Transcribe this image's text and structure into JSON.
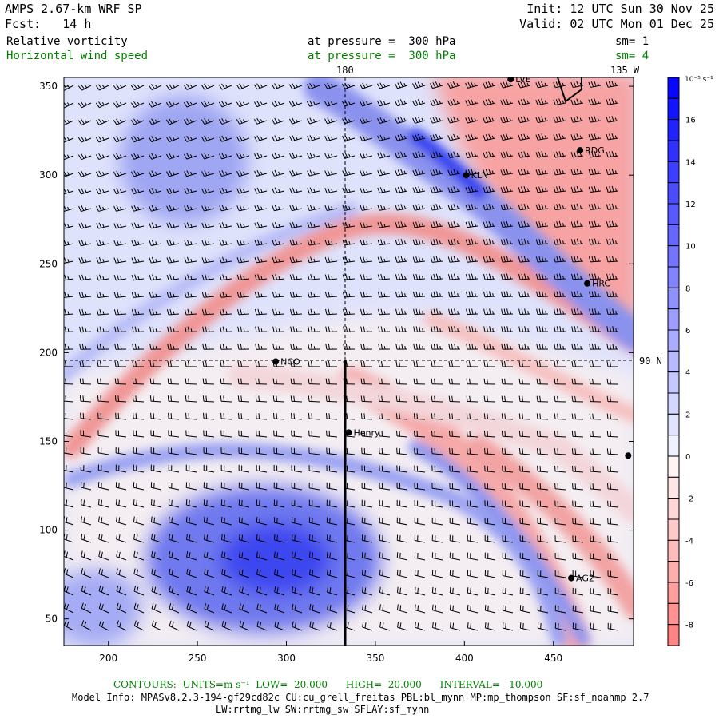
{
  "header": {
    "title": "AMPS 2.67-km WRF SP",
    "forecast": "Fcst:   14 h",
    "init": "Init: 12 UTC Sun 30 Nov 25",
    "valid": "Valid: 02 UTC Mon 01 Dec 25",
    "field1": {
      "name": "Relative vorticity",
      "level": "at pressure =  300 hPa",
      "smooth": "sm= 1"
    },
    "field2": {
      "name": "Horizontal wind speed",
      "level": "at pressure =  300 hPa",
      "smooth": "sm= 4"
    },
    "lon_label_180": "180",
    "lon_label_135w": "135 W",
    "lat_label_90n": "90 N"
  },
  "footer": {
    "contours": "CONTOURS:  UNITS=m s⁻¹  LOW=  20.000      HIGH=  20.000      INTERVAL=   10.000",
    "model_info": "Model Info: MPASv8.2.3-194-gf29cd82c CU:cu_grell_freitas PBL:bl_mynn MP:mp_thompson SF:sf_noahmp 2.7",
    "model_info2": "LW:rrtmg_lw SW:rrtmg_sw SFLAY:sf_mynn"
  },
  "colors": {
    "positive": "#0000ff",
    "negative": "#ff8080",
    "green": "#008000"
  },
  "chart_data": {
    "type": "heatmap",
    "title": "Relative vorticity at 300 hPa with wind barbs",
    "xlim": [
      175,
      495
    ],
    "ylim": [
      35,
      355
    ],
    "x_ticks": [
      "200",
      "250",
      "300",
      "350",
      "400",
      "450"
    ],
    "x_tick_values": [
      200,
      250,
      300,
      350,
      400,
      450
    ],
    "y_ticks": [
      "350",
      "300",
      "250",
      "200",
      "150",
      "100",
      "50"
    ],
    "y_tick_values": [
      350,
      300,
      250,
      200,
      150,
      100,
      50
    ],
    "colorbar": {
      "units": "10⁻⁵ s⁻¹",
      "levels": [
        18,
        17,
        16,
        15,
        14,
        13,
        12,
        11,
        10,
        9,
        8,
        7,
        6,
        5,
        4,
        3,
        2,
        1,
        0,
        -1,
        -2,
        -3,
        -4,
        -5,
        -6,
        -7,
        -8,
        -9
      ],
      "labels": [
        "16",
        "14",
        "12",
        "10",
        "8",
        "6",
        "4",
        "2",
        "0",
        "-2",
        "-4",
        "-6",
        "-8"
      ],
      "label_values": [
        16,
        14,
        12,
        10,
        8,
        6,
        4,
        2,
        0,
        -2,
        -4,
        -6,
        -8
      ]
    },
    "stations": [
      {
        "name": "KLN",
        "x": 401,
        "y": 300
      },
      {
        "name": "RDG",
        "x": 465,
        "y": 314
      },
      {
        "name": "HRC",
        "x": 469,
        "y": 239
      },
      {
        "name": "NCO",
        "x": 294,
        "y": 195
      },
      {
        "name": "Henry",
        "x": 335,
        "y": 155
      },
      {
        "name": "AG2",
        "x": 460,
        "y": 73
      },
      {
        "name": "LVE",
        "x": 426,
        "y": 354
      },
      {
        "name": "",
        "x": 492,
        "y": 142
      }
    ],
    "crosshair": {
      "x": 335,
      "y": 195
    }
  }
}
